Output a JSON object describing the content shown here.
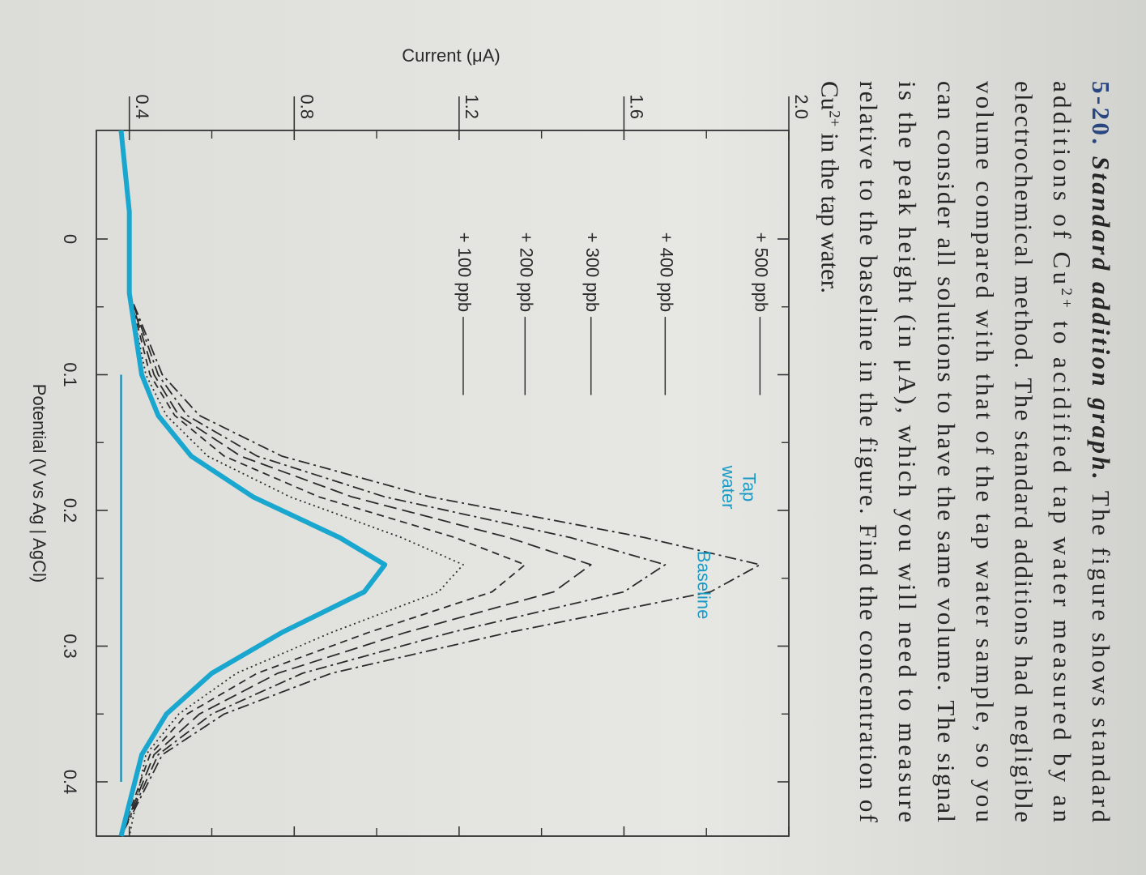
{
  "problem": {
    "lines": [
      [
        {
          "t": "5-20.",
          "style": "number"
        },
        {
          "t": " Standard addition graph.",
          "style": "italic"
        },
        {
          "t": " The figure shows standard"
        }
      ],
      [
        {
          "t": "additions of Cu"
        },
        {
          "t": "2+",
          "sup": true
        },
        {
          "t": " to acidified tap water measured by an"
        }
      ],
      [
        {
          "t": "electrochemical method. The standard additions had negligible"
        }
      ],
      [
        {
          "t": "volume compared with that of the tap water sample, so you"
        }
      ],
      [
        {
          "t": "can consider all solutions to have the same volume. The signal"
        }
      ],
      [
        {
          "t": "is the peak height (in μA), which you will need to measure"
        }
      ],
      [
        {
          "t": "relative to the baseline in the figure. Find the concentration of"
        }
      ],
      [
        {
          "t": "Cu"
        },
        {
          "t": "2+",
          "sup": true
        },
        {
          "t": " in the tap water."
        }
      ]
    ]
  },
  "chart_data": {
    "type": "line",
    "xlabel": "Potential (V vs Ag | AgCl)",
    "ylabel": "Current (μA)",
    "xlim": [
      -0.08,
      0.44
    ],
    "ylim": [
      0.32,
      2.0
    ],
    "xticks": [
      0,
      0.1,
      0.2,
      0.3,
      0.4
    ],
    "xminor": [
      0.05,
      0.15,
      0.25,
      0.35
    ],
    "yticks": [
      0.4,
      0.8,
      1.2,
      1.6,
      {
        "value": 2,
        "label": "2.0"
      }
    ],
    "yminor": [
      0.6,
      1.0,
      1.4,
      1.8
    ],
    "x": [
      -0.08,
      -0.02,
      0.04,
      0.1,
      0.13,
      0.16,
      0.19,
      0.22,
      0.24,
      0.26,
      0.29,
      0.32,
      0.35,
      0.38,
      0.44
    ],
    "series": [
      {
        "name": "+ 500 ppb",
        "color": "#2b2b2b",
        "style": "dashdot",
        "values": [
          0.38,
          0.4,
          0.4,
          0.48,
          0.57,
          0.77,
          1.13,
          1.65,
          1.93,
          1.81,
          1.32,
          0.89,
          0.63,
          0.48,
          0.38
        ]
      },
      {
        "name": "+ 400 ppb",
        "color": "#2b2b2b",
        "style": "dashdot",
        "values": [
          0.38,
          0.4,
          0.4,
          0.47,
          0.54,
          0.71,
          1.02,
          1.47,
          1.7,
          1.6,
          1.18,
          0.82,
          0.6,
          0.47,
          0.38
        ]
      },
      {
        "name": "+ 300 ppb",
        "color": "#2b2b2b",
        "style": "longdash",
        "values": [
          0.38,
          0.4,
          0.4,
          0.46,
          0.52,
          0.67,
          0.94,
          1.32,
          1.52,
          1.43,
          1.07,
          0.76,
          0.57,
          0.46,
          0.38
        ]
      },
      {
        "name": "+ 200 ppb",
        "color": "#2b2b2b",
        "style": "dashed",
        "values": [
          0.38,
          0.4,
          0.4,
          0.45,
          0.51,
          0.63,
          0.86,
          1.19,
          1.36,
          1.28,
          0.98,
          0.71,
          0.54,
          0.45,
          0.38
        ]
      },
      {
        "name": "+ 100 ppb",
        "color": "#2b2b2b",
        "style": "dotted",
        "values": [
          0.38,
          0.4,
          0.4,
          0.44,
          0.49,
          0.59,
          0.79,
          1.06,
          1.21,
          1.15,
          0.89,
          0.66,
          0.52,
          0.44,
          0.4
        ]
      },
      {
        "color": "#19a7cf",
        "style": "thick",
        "values": [
          0.38,
          0.4,
          0.4,
          0.43,
          0.47,
          0.55,
          0.7,
          0.91,
          1.02,
          0.97,
          0.77,
          0.6,
          0.49,
          0.43,
          0.38
        ]
      }
    ],
    "annotations": [
      "Tap",
      "water",
      "Baseline"
    ],
    "baseline": {
      "x": [
        0.1,
        0.4
      ],
      "value": 0.38,
      "color": "#1b8fb5"
    }
  }
}
